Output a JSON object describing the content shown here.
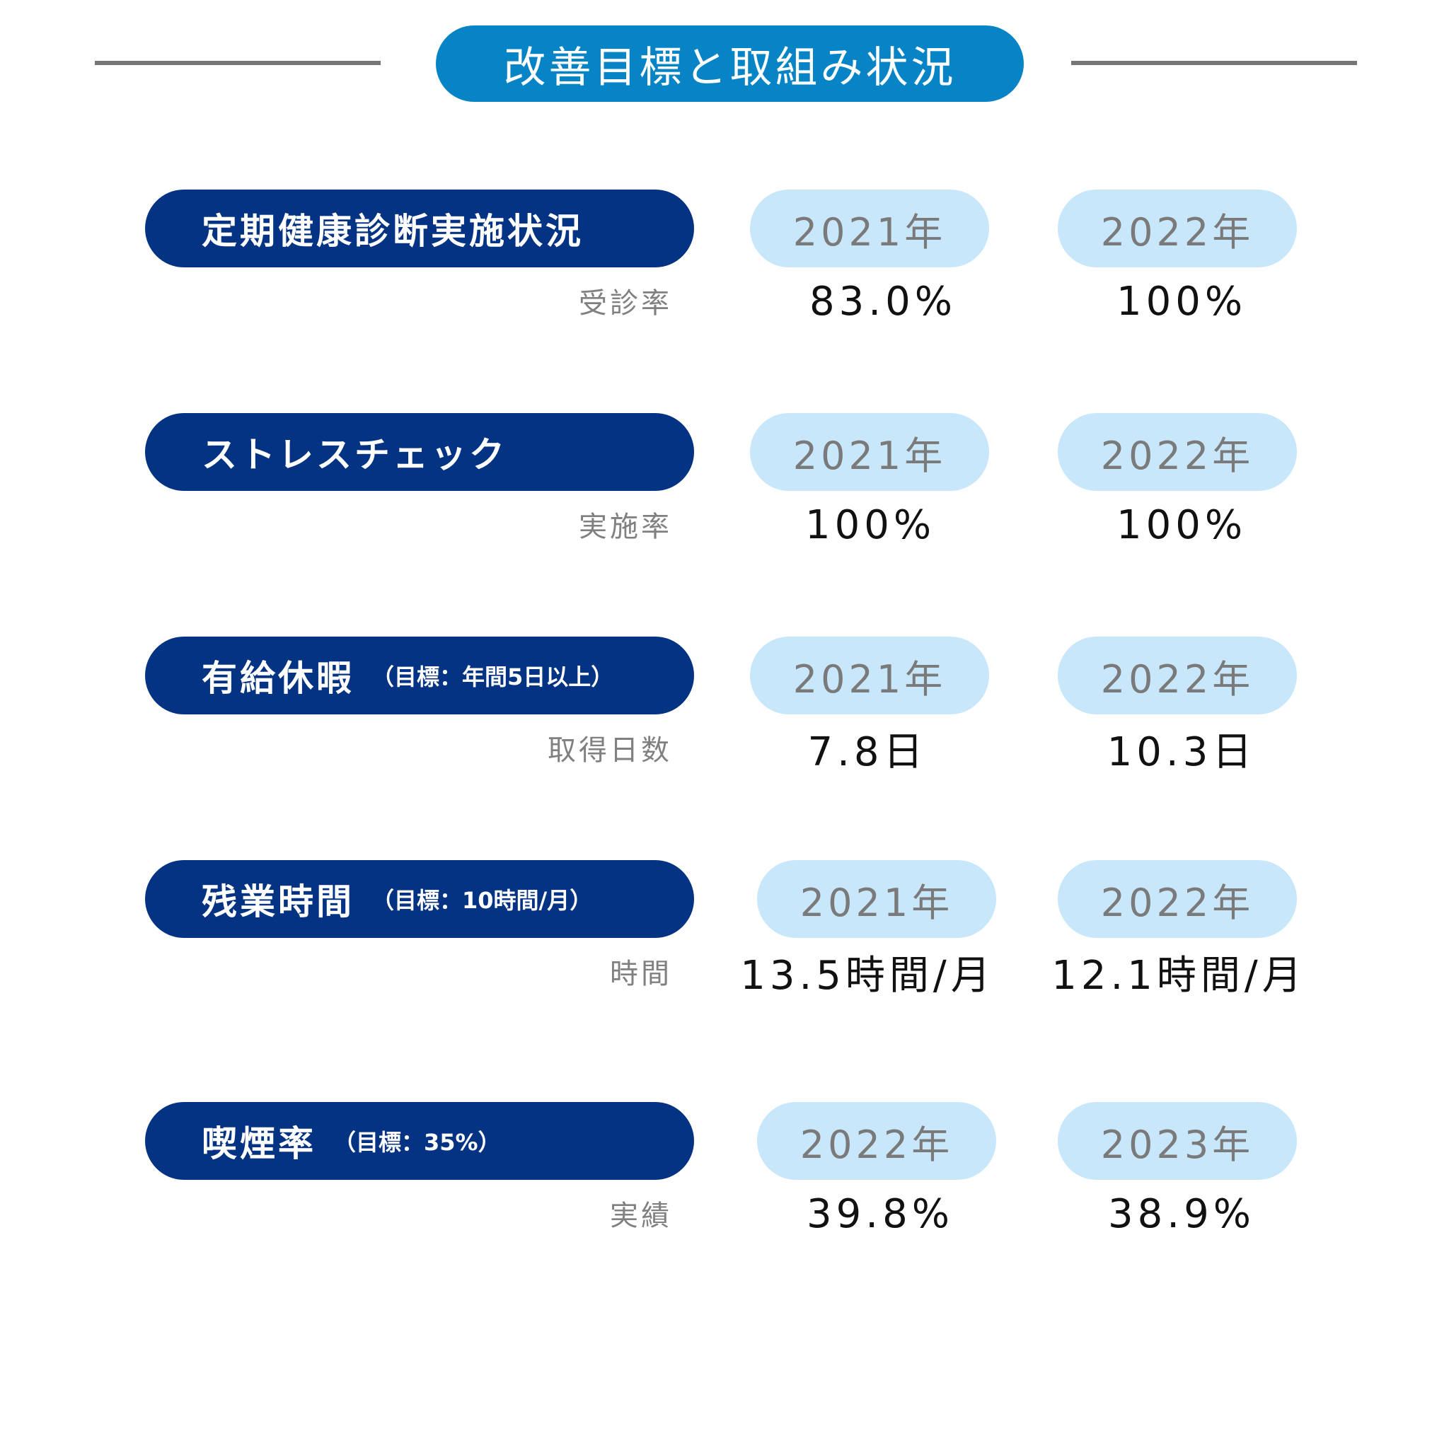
{
  "title": "改善目標と取組み状況",
  "sections": [
    {
      "title": "定期健康診断実施状況",
      "note": "",
      "year1": "2021年",
      "year2": "2022年",
      "metric": "受診率",
      "value1": "83.0%",
      "value2": "100%"
    },
    {
      "title": "ストレスチェック",
      "note": "",
      "year1": "2021年",
      "year2": "2022年",
      "metric": "実施率",
      "value1": "100%",
      "value2": "100%"
    },
    {
      "title": "有給休暇",
      "note": "（目標：年間5日以上）",
      "year1": "2021年",
      "year2": "2022年",
      "metric": "取得日数",
      "value1": "7.8日",
      "value2": "10.3日"
    },
    {
      "title": "残業時間",
      "note": "（目標：10時間/月）",
      "year1": "2021年",
      "year2": "2022年",
      "metric": "時間",
      "value1": "13.5時間/月",
      "value2": "12.1時間/月"
    },
    {
      "title": "喫煙率",
      "note": "（目標：35%）",
      "year1": "2022年",
      "year2": "2023年",
      "metric": "実績",
      "value1": "39.8%",
      "value2": "38.9%"
    }
  ]
}
